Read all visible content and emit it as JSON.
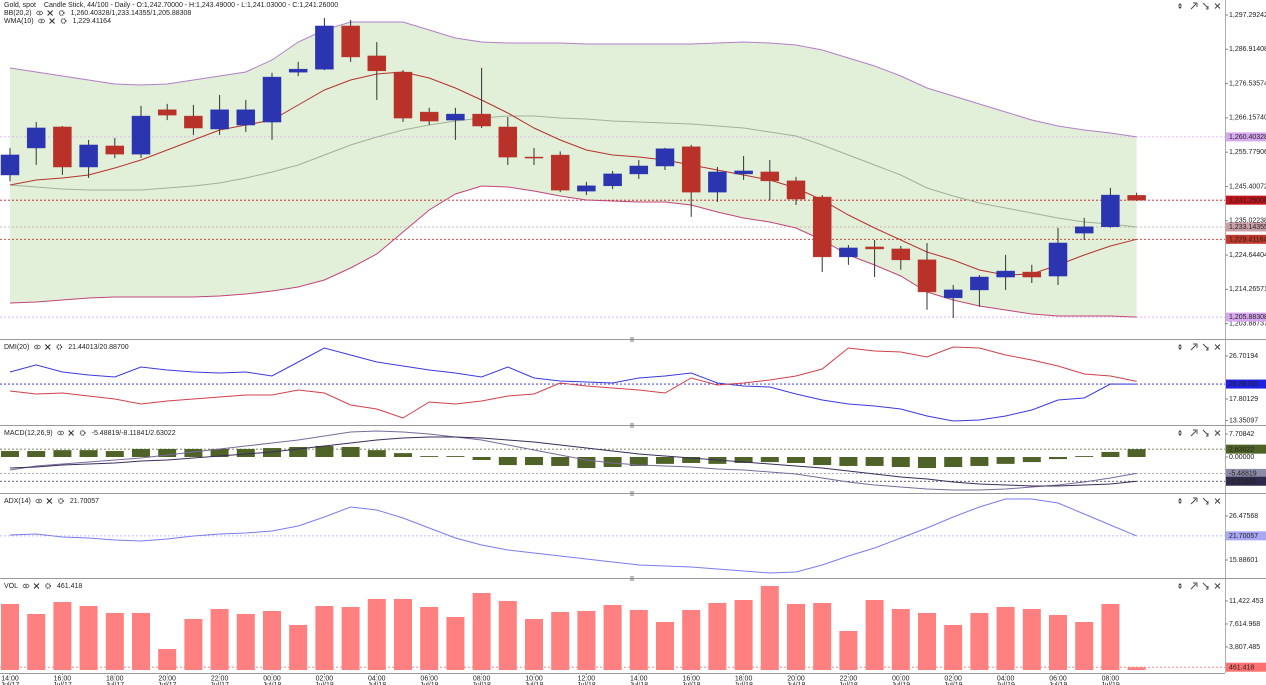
{
  "chart_data": [
    {
      "type": "candlestick",
      "title": "Gold, spot",
      "subtitle": "Candle Stick, 44/100 - Daily - O:1,242.70000 - H:1,243.49000 - L:1,241.03000 - C:1,241.26000",
      "indicators": [
        {
          "name": "BB(20,2)",
          "readout": "1,260.40328/1,233.14355/1,205.88308",
          "readout_color": "#c0507a"
        },
        {
          "name": "WMA(10)",
          "readout": "1,229.41164",
          "readout_color": "#c0392b"
        }
      ],
      "up_color": "#2b35b0",
      "down_color": "#b8322a",
      "band_fill": "#e2efd9",
      "open": [
        1248.89,
        1257.06,
        1263.41,
        1251.3,
        1257.66,
        1255.2,
        1268.6,
        1266.7,
        1262.8,
        1264.0,
        1264.9,
        1280.0,
        1280.9,
        1293.97,
        1284.9,
        1280.0,
        1267.9,
        1265.5,
        1267.3,
        1263.4,
        1254.3,
        1254.9,
        1244.0,
        1245.6,
        1249.2,
        1251.6,
        1257.4,
        1243.7,
        1249.2,
        1249.8,
        1247.1,
        1242.2,
        1224.1,
        1227.1,
        1226.5,
        1223.2,
        1211.7,
        1214.1,
        1218.0,
        1219.5,
        1218.3,
        1231.3,
        1233.2,
        1242.7
      ],
      "high": [
        1257.0,
        1264.93,
        1263.7,
        1259.5,
        1260.1,
        1269.8,
        1270.4,
        1270.1,
        1273.1,
        1271.6,
        1279.8,
        1283.1,
        1296.4,
        1295.8,
        1289.1,
        1280.6,
        1269.2,
        1269.2,
        1281.3,
        1266.4,
        1257.1,
        1256.0,
        1246.8,
        1250.1,
        1253.4,
        1257.1,
        1258.0,
        1251.3,
        1254.6,
        1253.4,
        1248.3,
        1242.8,
        1227.7,
        1229.2,
        1227.4,
        1228.3,
        1215.6,
        1218.6,
        1224.7,
        1221.7,
        1232.9,
        1235.9,
        1245.0,
        1243.49
      ],
      "low": [
        1247.0,
        1251.92,
        1248.9,
        1248.0,
        1254.0,
        1254.0,
        1265.5,
        1261.0,
        1261.0,
        1261.9,
        1259.5,
        1278.8,
        1280.6,
        1283.1,
        1271.6,
        1264.9,
        1264.0,
        1259.5,
        1263.1,
        1251.9,
        1251.9,
        1243.7,
        1242.8,
        1244.6,
        1247.7,
        1250.4,
        1236.2,
        1240.7,
        1247.4,
        1241.3,
        1239.8,
        1219.5,
        1221.7,
        1218.0,
        1220.2,
        1208.1,
        1205.6,
        1209.0,
        1214.1,
        1216.2,
        1215.6,
        1229.2,
        1232.9,
        1241.03
      ],
      "close": [
        1254.94,
        1263.11,
        1251.3,
        1257.96,
        1255.2,
        1266.7,
        1267.0,
        1263.1,
        1268.6,
        1268.6,
        1278.5,
        1280.9,
        1293.97,
        1284.6,
        1280.4,
        1266.1,
        1265.2,
        1267.3,
        1263.7,
        1254.3,
        1254.0,
        1244.3,
        1245.6,
        1249.2,
        1251.6,
        1256.8,
        1243.7,
        1249.8,
        1250.1,
        1247.1,
        1241.6,
        1224.1,
        1226.8,
        1226.5,
        1223.2,
        1213.5,
        1214.1,
        1218.0,
        1219.8,
        1218.0,
        1228.3,
        1233.2,
        1242.8,
        1241.26
      ],
      "series": [
        {
          "color": "#b27fc9",
          "values": [
            1281.25,
            1280.04,
            1278.83,
            1277.62,
            1276.41,
            1276.11,
            1276.41,
            1277.62,
            1278.83,
            1280.04,
            1283.67,
            1289.12,
            1292.75,
            1295.17,
            1295.17,
            1295.17,
            1292.75,
            1290.33,
            1289.12,
            1288.82,
            1288.82,
            1288.82,
            1288.52,
            1288.52,
            1288.52,
            1288.52,
            1288.52,
            1288.82,
            1289.12,
            1288.82,
            1288.21,
            1286.7,
            1284.28,
            1281.86,
            1278.83,
            1275.2,
            1272.78,
            1270.36,
            1267.94,
            1265.52,
            1263.7,
            1262.49,
            1261.58,
            1260.40328
          ]
        },
        {
          "color": "#a3b09a",
          "values": [
            1245.85,
            1245.24,
            1244.64,
            1244.34,
            1244.34,
            1244.34,
            1244.94,
            1245.55,
            1246.45,
            1247.97,
            1249.78,
            1251.9,
            1254.93,
            1257.95,
            1260.37,
            1262.49,
            1264.0,
            1265.22,
            1266.12,
            1266.73,
            1266.73,
            1266.12,
            1265.82,
            1265.22,
            1264.91,
            1264.61,
            1264.31,
            1263.7,
            1263.1,
            1261.89,
            1260.68,
            1257.95,
            1254.93,
            1251.9,
            1248.88,
            1244.94,
            1242.52,
            1240.4,
            1238.89,
            1237.38,
            1235.86,
            1234.65,
            1234.05,
            1233.14355
          ]
        },
        {
          "color": "#c2457a",
          "values": [
            1210.14,
            1210.44,
            1211.05,
            1211.65,
            1211.95,
            1211.95,
            1211.95,
            1211.95,
            1212.26,
            1212.86,
            1213.77,
            1214.98,
            1217.1,
            1220.73,
            1224.97,
            1231.63,
            1238.28,
            1243.13,
            1245.55,
            1245.24,
            1244.04,
            1242.52,
            1241.31,
            1241.01,
            1240.7,
            1240.7,
            1239.8,
            1237.68,
            1235.86,
            1234.65,
            1232.84,
            1229.2,
            1224.67,
            1221.64,
            1218.31,
            1213.47,
            1211.05,
            1209.23,
            1208.02,
            1206.81,
            1206.21,
            1206.21,
            1206.21,
            1205.88308
          ]
        },
        {
          "color": "#b5332f",
          "values": [
            1245.85,
            1247.36,
            1247.97,
            1248.88,
            1250.99,
            1253.41,
            1256.44,
            1259.47,
            1262.49,
            1264.0,
            1265.52,
            1270.06,
            1274.6,
            1277.62,
            1279.44,
            1280.04,
            1278.23,
            1275.2,
            1271.57,
            1267.64,
            1263.1,
            1259.47,
            1256.44,
            1254.93,
            1254.32,
            1253.41,
            1251.9,
            1250.39,
            1248.88,
            1247.36,
            1244.94,
            1241.31,
            1236.77,
            1232.84,
            1229.2,
            1225.58,
            1223.15,
            1220.13,
            1218.62,
            1218.92,
            1221.64,
            1224.67,
            1227.39,
            1229.41164
          ]
        }
      ],
      "ylim": [
        1199.55,
        1301.83
      ],
      "yticks": [
        {
          "value": 1297.29242,
          "label": "1,297.29242"
        },
        {
          "value": 1286.91408,
          "label": "1,286.91408"
        },
        {
          "value": 1276.53574,
          "label": "1,276.53574"
        },
        {
          "value": 1266.1574,
          "label": "1,266.15740"
        },
        {
          "value": 1255.77906,
          "label": "1,255.77906"
        },
        {
          "value": 1245.40072,
          "label": "1,245.40072"
        },
        {
          "value": 1235.02238,
          "label": "1,235.02238"
        },
        {
          "value": 1224.64404,
          "label": "1,224.64404"
        },
        {
          "value": 1214.26571,
          "label": "1,214.26571"
        },
        {
          "value": 1203.88737,
          "label": "1,203.88737"
        }
      ],
      "tags": [
        {
          "value": 1260.40328,
          "label": "1,260.40328",
          "color": "#d7a8ef",
          "text_color": "#333333"
        },
        {
          "value": 1241.26,
          "label": "1,241.26000",
          "color": "#c0141a",
          "text_color": "#ffffff"
        },
        {
          "value": 1233.14355,
          "label": "1,233.14355",
          "color": "#c9a0a8",
          "text_color": "#ffffff"
        },
        {
          "value": 1229.41164,
          "label": "1,229.41164",
          "color": "#c0392b",
          "text_color": "#ffffff"
        },
        {
          "value": 1205.88308,
          "label": "1,205.88308",
          "color": "#d7a8ef",
          "text_color": "#333333"
        }
      ]
    },
    {
      "type": "line",
      "indicators": [
        {
          "name": "DMI(20)",
          "readout": "21.44013/20.88700",
          "readout_color": "#d0404a"
        }
      ],
      "series": [
        {
          "color": "#3a3adf",
          "values": [
            23.39,
            24.85,
            23.39,
            22.77,
            22.35,
            24.42,
            23.8,
            23.39,
            23.18,
            23.39,
            22.56,
            25.46,
            28.35,
            26.9,
            25.46,
            24.63,
            23.8,
            23.18,
            22.35,
            24.42,
            22.14,
            21.52,
            21.32,
            21.11,
            22.14,
            22.56,
            23.18,
            21.11,
            20.49,
            20.28,
            18.83,
            17.59,
            16.76,
            16.35,
            15.73,
            14.28,
            13.24,
            13.45,
            14.28,
            15.52,
            17.59,
            18.0,
            20.9,
            20.887
          ]
        },
        {
          "color": "#d0404a",
          "values": [
            19.45,
            18.83,
            19.04,
            18.42,
            17.8,
            16.76,
            17.38,
            17.8,
            18.21,
            18.63,
            18.63,
            19.66,
            19.04,
            16.55,
            15.73,
            13.87,
            17.18,
            16.76,
            17.38,
            18.42,
            18.83,
            21.11,
            20.49,
            20.07,
            19.66,
            19.04,
            22.14,
            20.69,
            21.11,
            21.73,
            22.56,
            24.01,
            28.35,
            27.73,
            27.53,
            26.49,
            28.56,
            28.35,
            26.9,
            25.87,
            24.63,
            22.97,
            22.56,
            21.44013
          ]
        }
      ],
      "ylim": [
        12.42,
        29.8
      ],
      "yticks": [
        26.70194,
        17.80129,
        13.35097
      ],
      "tags": [
        {
          "value": 20.887,
          "label": "20.88700",
          "color": "#2020e0",
          "text_color": "#ffffff"
        }
      ]
    },
    {
      "type": "macd",
      "indicators": [
        {
          "name": "MACD(12,26,9)",
          "readout": "-5.48819/-8.11841/2.63022",
          "readout_color": "#4f6228"
        }
      ],
      "histogram": {
        "color": "#4f6228",
        "values": [
          2.0,
          2.0,
          2.3,
          2.3,
          2.0,
          2.7,
          2.7,
          2.7,
          2.7,
          2.7,
          3.0,
          3.35,
          3.7,
          3.35,
          2.3,
          1.3,
          0.3,
          0.3,
          -1.0,
          -2.7,
          -2.7,
          -3.0,
          -3.7,
          -3.35,
          -3.0,
          -2.3,
          -2.0,
          -2.3,
          -2.0,
          -1.7,
          -2.0,
          -2.7,
          -3.0,
          -3.0,
          -3.35,
          -3.7,
          -3.35,
          -3.0,
          -2.3,
          -1.7,
          -0.7,
          0.3,
          1.7,
          2.63022
        ]
      },
      "series": [
        {
          "color": "#7a6a9a",
          "values": [
            -4.36,
            -3.02,
            -2.35,
            -1.68,
            -1.01,
            -0.34,
            0.67,
            1.68,
            2.68,
            3.69,
            4.69,
            5.7,
            7.04,
            8.38,
            8.71,
            8.38,
            7.71,
            6.7,
            5.7,
            4.02,
            2.35,
            0.67,
            -1.01,
            -2.01,
            -2.68,
            -3.02,
            -3.35,
            -4.02,
            -4.36,
            -5.03,
            -5.7,
            -7.04,
            -8.38,
            -9.38,
            -10.05,
            -10.72,
            -11.06,
            -11.06,
            -10.72,
            -10.05,
            -9.38,
            -8.38,
            -7.04,
            -5.48819
          ]
        },
        {
          "color": "#3a2d5c",
          "values": [
            -3.69,
            -3.35,
            -2.68,
            -2.35,
            -2.01,
            -1.34,
            -1.01,
            -0.34,
            0.34,
            1.01,
            1.68,
            2.68,
            3.69,
            4.69,
            5.7,
            6.37,
            6.7,
            6.7,
            6.37,
            5.7,
            5.03,
            4.02,
            3.02,
            2.01,
            1.01,
            0.34,
            -0.34,
            -1.01,
            -1.68,
            -2.35,
            -3.02,
            -3.69,
            -4.69,
            -5.7,
            -6.7,
            -7.37,
            -8.38,
            -9.05,
            -9.38,
            -9.72,
            -9.72,
            -9.38,
            -9.05,
            -8.11841
          ]
        }
      ],
      "ylim": [
        -12.06,
        10.05
      ],
      "yticks": [
        7.70842,
        {
          "value": 0,
          "label": "0.00000"
        }
      ],
      "tags": [
        {
          "value": 2.63022,
          "label": "2.63022",
          "color": "#4f6228",
          "text_color": "#ffffff"
        },
        {
          "value": -5.48819,
          "label": "-5.48819",
          "color": "#8c8ca8",
          "text_color": "#ffffff"
        },
        {
          "value": -8.11841,
          "label": "-8.11841",
          "color": "#2e2a4a",
          "text_color": "#ffffff"
        }
      ]
    },
    {
      "type": "line",
      "indicators": [
        {
          "name": "ADX(14)",
          "readout": "21.70057",
          "readout_color": "#7b7bf0"
        }
      ],
      "series": [
        {
          "color": "#7b7bf0",
          "values": [
            21.9,
            22.14,
            21.42,
            21.18,
            20.7,
            20.46,
            20.94,
            21.66,
            22.14,
            22.38,
            22.87,
            24.07,
            26.24,
            28.64,
            27.92,
            26.0,
            23.59,
            21.18,
            19.5,
            18.3,
            17.57,
            16.85,
            16.13,
            15.41,
            14.68,
            14.44,
            14.2,
            13.72,
            13.24,
            12.76,
            13.0,
            14.68,
            16.85,
            18.77,
            21.18,
            23.59,
            26.24,
            28.64,
            30.57,
            30.57,
            29.61,
            26.96,
            24.31,
            21.70057
          ]
        }
      ],
      "ylim": [
        11.56,
        31.53
      ],
      "yticks": [
        26.47568,
        15.88601
      ],
      "tags": [
        {
          "value": 21.70057,
          "label": "21.70057",
          "color": "#a8a8f5",
          "text_color": "#ffffff"
        }
      ]
    },
    {
      "type": "bar",
      "indicators": [
        {
          "name": "VOL",
          "readout": "461.418",
          "readout_color": "#ff6060"
        }
      ],
      "color": "#ff8080",
      "values": [
        10923,
        9268,
        11254,
        10592,
        9434,
        9434,
        3476,
        8441,
        10096,
        9268,
        9765,
        7448,
        10592,
        10427,
        11751,
        11751,
        10427,
        8772,
        12744,
        11420,
        8441,
        9599,
        9765,
        10758,
        9930,
        7944,
        9930,
        11089,
        11585,
        13902,
        10923,
        11089,
        6455,
        11585,
        10096,
        9434,
        7448,
        9434,
        10427,
        10096,
        9103,
        7944,
        10923,
        461.418
      ],
      "categories": [
        "14:00",
        null,
        "16:00",
        null,
        "18:00",
        null,
        "20:00",
        null,
        "22:00",
        null,
        "00:00",
        null,
        "02:00",
        null,
        "04:00",
        null,
        "06:00",
        null,
        "08:00",
        null,
        "10:00",
        null,
        "12:00",
        null,
        "14:00",
        null,
        "16:00",
        null,
        "18:00",
        null,
        "20:00",
        null,
        "22:00",
        null,
        "00:00",
        null,
        "02:00",
        null,
        "04:00",
        null,
        "06:00",
        null,
        "08:00",
        null
      ],
      "dates": [
        "Jul/17",
        null,
        "Jul/17",
        null,
        "Jul/17",
        null,
        "Jul/17",
        null,
        "Jul/17",
        null,
        "Jul/18",
        null,
        "Jul/18",
        null,
        "Jul/18",
        null,
        "Jul/18",
        null,
        "Jul/18",
        null,
        "Jul/18",
        null,
        "Jul/18",
        null,
        "Jul/18",
        null,
        "Jul/18",
        null,
        "Jul/18",
        null,
        "Jul/18",
        null,
        "Jul/18",
        null,
        "Jul/19",
        null,
        "Jul/19",
        null,
        "Jul/19",
        null,
        "Jul/19",
        null,
        "Jul/19",
        null
      ],
      "ylim": [
        0,
        14895
      ],
      "yticks": [
        {
          "value": 11422.453,
          "label": "11,422.453"
        },
        {
          "value": 7614.968,
          "label": "7,614.968"
        },
        {
          "value": 3807.485,
          "label": "3,807.485"
        }
      ],
      "tags": [
        {
          "value": 461.418,
          "label": "461.418",
          "color": "#ff7070",
          "text_color": "#ffffff"
        }
      ]
    }
  ]
}
